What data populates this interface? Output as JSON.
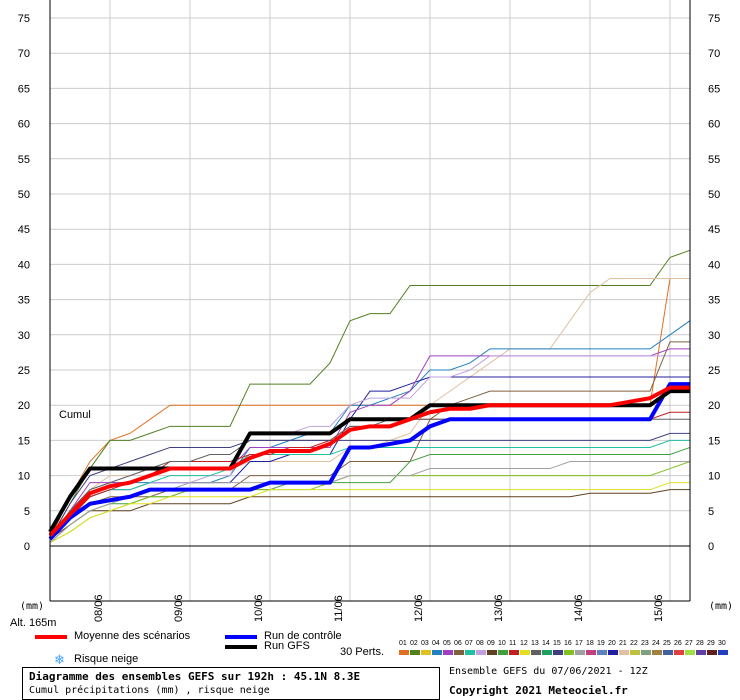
{
  "chart_data": {
    "type": "line",
    "y_ticks": [
      "75",
      "70",
      "65",
      "60",
      "55",
      "50",
      "45",
      "40",
      "35",
      "30",
      "25",
      "20",
      "15",
      "10",
      "5",
      "0"
    ],
    "ylim": [
      0,
      75
    ],
    "x_tick_labels": [
      "08/06",
      "09/06",
      "10/06",
      "11/06",
      "12/06",
      "13/06",
      "14/06",
      "15/06"
    ],
    "x_tick_hours": [
      18,
      42,
      66,
      90,
      114,
      138,
      162,
      186
    ],
    "xlim": [
      0,
      192
    ],
    "grid": true,
    "left_unit": "(mm)",
    "right_unit": "(mm)",
    "altitude": "Alt. 165m",
    "cumul_label": "Cumul",
    "legend": {
      "mean_label": "Moyenne des scénarios",
      "control_label": "Run de contrôle",
      "gfs_label": "Run GFS",
      "snow_label": "Risque neige",
      "perts_label": "30 Perts.",
      "snow_icon": "snowflake-icon"
    },
    "series": [
      {
        "name": "Moyenne des scénarios",
        "color": "#ff0000",
        "x": [
          0,
          6,
          12,
          18,
          24,
          30,
          36,
          42,
          48,
          54,
          60,
          66,
          72,
          78,
          84,
          90,
          96,
          102,
          108,
          114,
          120,
          126,
          132,
          138,
          144,
          150,
          156,
          162,
          168,
          174,
          180,
          186,
          192
        ],
        "values": [
          1.5,
          4.5,
          7.5,
          8.5,
          9,
          10,
          11,
          11,
          11,
          11,
          12.5,
          13.5,
          13.5,
          13.5,
          14.5,
          16.5,
          17,
          17,
          18,
          19,
          19.5,
          19.5,
          20,
          20,
          20,
          20,
          20,
          20,
          20,
          20.5,
          21,
          22.5,
          22.5
        ]
      },
      {
        "name": "Run de contrôle",
        "color": "#0000ff",
        "x": [
          0,
          6,
          12,
          18,
          24,
          30,
          36,
          42,
          48,
          54,
          60,
          66,
          72,
          78,
          84,
          90,
          96,
          102,
          108,
          114,
          120,
          126,
          132,
          138,
          144,
          150,
          156,
          162,
          168,
          174,
          180,
          186,
          192
        ],
        "values": [
          1,
          4,
          6,
          6.5,
          7,
          8,
          8,
          8,
          8,
          8,
          8,
          9,
          9,
          9,
          9,
          14,
          14,
          14.5,
          15,
          17,
          18,
          18,
          18,
          18,
          18,
          18,
          18,
          18,
          18,
          18,
          18,
          23,
          23
        ]
      },
      {
        "name": "Run GFS",
        "color": "#000000",
        "x": [
          0,
          6,
          12,
          18,
          24,
          30,
          36,
          42,
          48,
          54,
          60,
          66,
          72,
          78,
          84,
          90,
          96,
          102,
          108,
          114,
          120,
          126,
          132,
          138,
          144,
          150,
          156,
          162,
          168,
          174,
          180,
          186,
          192
        ],
        "values": [
          2,
          7,
          11,
          11,
          11,
          11,
          11,
          11,
          11,
          11,
          16,
          16,
          16,
          16,
          16,
          18,
          18,
          18,
          18,
          20,
          20,
          20,
          20,
          20,
          20,
          20,
          20,
          20,
          20,
          20,
          20,
          22,
          22
        ]
      }
    ],
    "perturbations": [
      {
        "color": "#e07020",
        "values": [
          1,
          7,
          12,
          15,
          16,
          18,
          20,
          20,
          20,
          20,
          20,
          20,
          20,
          20,
          20,
          20,
          20,
          20,
          20,
          20,
          20,
          20,
          20,
          20,
          20,
          20,
          20,
          20,
          20,
          20,
          20,
          38,
          38
        ]
      },
      {
        "color": "#508020",
        "values": [
          1,
          6,
          11,
          15,
          15,
          16,
          17,
          17,
          17,
          17,
          23,
          23,
          23,
          23,
          26,
          32,
          33,
          33,
          37,
          37,
          37,
          37,
          37,
          37,
          37,
          37,
          37,
          37,
          37,
          37,
          37,
          41,
          42
        ]
      },
      {
        "color": "#e0c0a0",
        "values": [
          1,
          5,
          8,
          10,
          10,
          11,
          11,
          11,
          11,
          11,
          12,
          12,
          12,
          12,
          12,
          14,
          14,
          15,
          16,
          20,
          22,
          24,
          26,
          28,
          28,
          28,
          32,
          36,
          38,
          38,
          38,
          38,
          38
        ]
      },
      {
        "color": "#2080c0",
        "values": [
          1,
          5,
          8,
          9,
          9,
          9,
          9,
          9,
          9,
          10,
          14,
          14,
          15,
          16,
          16,
          20,
          20,
          21,
          22,
          25,
          25,
          26,
          28,
          28,
          28,
          28,
          28,
          28,
          28,
          28,
          28,
          30,
          32
        ]
      },
      {
        "color": "#2020a0",
        "values": [
          1,
          4,
          7,
          8,
          8,
          9,
          9,
          9,
          9,
          9,
          12,
          12,
          13,
          13,
          13,
          18,
          22,
          22,
          23,
          24,
          24,
          24,
          24,
          24,
          24,
          24,
          24,
          24,
          24,
          24,
          24,
          24,
          24
        ]
      },
      {
        "color": "#a040c0",
        "values": [
          1,
          5,
          9,
          9,
          9,
          10,
          11,
          11,
          11,
          11,
          14,
          14,
          14,
          14,
          14,
          19,
          20,
          20,
          22,
          27,
          27,
          27,
          27,
          27,
          27,
          27,
          27,
          27,
          27,
          27,
          27,
          28,
          28
        ]
      },
      {
        "color": "#c0a0e0",
        "values": [
          1,
          4,
          7,
          8,
          8,
          9,
          9,
          9,
          10,
          10,
          16,
          16,
          16,
          17,
          17,
          20,
          21,
          21,
          21,
          24,
          24,
          25,
          27,
          27,
          27,
          27,
          27,
          27,
          27,
          27,
          27,
          27,
          27
        ]
      },
      {
        "color": "#806040",
        "values": [
          1,
          4,
          6,
          7,
          7,
          7,
          8,
          8,
          8,
          8,
          10,
          10,
          10,
          10,
          10,
          12,
          12,
          12,
          12,
          18,
          20,
          21,
          22,
          22,
          22,
          22,
          22,
          22,
          22,
          22,
          22,
          29,
          29
        ]
      },
      {
        "color": "#604020",
        "values": [
          1,
          3,
          5,
          5,
          5,
          6,
          6,
          6,
          6,
          6,
          7,
          7,
          7,
          7,
          7,
          7,
          7,
          7,
          7,
          7,
          7,
          7,
          7,
          7,
          7,
          7,
          7,
          7.5,
          7.5,
          7.5,
          7.5,
          8,
          8
        ]
      },
      {
        "color": "#40a040",
        "values": [
          0.5,
          3,
          5,
          6,
          6,
          7,
          7,
          8,
          8,
          8,
          8,
          8,
          9,
          9,
          9,
          9,
          9,
          9,
          12,
          13,
          13,
          13,
          13,
          13,
          13,
          13,
          13,
          13,
          13,
          13,
          13,
          13,
          14
        ]
      },
      {
        "color": "#80c020",
        "values": [
          0.5,
          2,
          4,
          5,
          6,
          7,
          7,
          8,
          8,
          8,
          8,
          8,
          8,
          8,
          9,
          10,
          10,
          10,
          10,
          10,
          10,
          10,
          10,
          10,
          10,
          10,
          10,
          10,
          10,
          10,
          10,
          11,
          12
        ]
      },
      {
        "color": "#e0e020",
        "values": [
          0.5,
          2,
          4,
          5,
          6,
          6,
          7,
          7,
          7,
          7,
          7,
          8,
          8,
          8,
          8,
          8,
          8,
          8,
          8,
          8,
          8,
          8,
          8,
          8,
          8,
          8,
          8,
          8,
          8,
          8,
          8,
          9,
          9
        ]
      },
      {
        "color": "#20c0a0",
        "values": [
          1,
          4,
          7,
          8,
          8,
          9,
          10,
          10,
          10,
          11,
          13,
          13,
          13,
          13,
          13,
          14,
          14,
          14,
          14,
          14,
          14,
          14,
          14,
          14,
          14,
          14,
          14,
          14,
          14,
          14,
          14,
          15,
          15
        ]
      },
      {
        "color": "#c02020",
        "values": [
          1,
          4,
          7,
          8,
          9,
          10,
          12,
          12,
          12,
          12,
          13,
          13,
          14,
          14,
          15,
          17,
          17,
          17,
          18,
          18,
          18,
          18,
          18,
          18,
          18,
          18,
          18,
          18,
          18,
          18,
          18,
          19,
          19
        ]
      },
      {
        "color": "#606060",
        "values": [
          1,
          5,
          8,
          9,
          10,
          11,
          12,
          12,
          13,
          13,
          15,
          15,
          15,
          15,
          15,
          17,
          17,
          18,
          18,
          18,
          18,
          18,
          18,
          18,
          18,
          18,
          18,
          18,
          18,
          18,
          18,
          18,
          18
        ]
      },
      {
        "color": "#404080",
        "values": [
          1,
          6,
          10,
          11,
          12,
          13,
          14,
          14,
          14,
          14,
          15,
          15,
          15,
          15,
          15,
          15,
          15,
          15,
          15,
          15,
          15,
          15,
          15,
          15,
          15,
          15,
          15,
          15,
          15,
          15,
          15,
          16,
          16
        ]
      },
      {
        "color": "#a0a0a0",
        "values": [
          0.5,
          3,
          5,
          6,
          7,
          8,
          8,
          9,
          9,
          9,
          9,
          9,
          9,
          9,
          9,
          10,
          10,
          10,
          10,
          11,
          11,
          11,
          11,
          11,
          11,
          11,
          12,
          12,
          12,
          12,
          12,
          12,
          12
        ]
      }
    ],
    "pert_legend": {
      "numbers": [
        "01",
        "02",
        "03",
        "04",
        "05",
        "06",
        "07",
        "08",
        "09",
        "10",
        "11",
        "12",
        "13",
        "14",
        "15",
        "16",
        "17",
        "18",
        "19",
        "20",
        "21",
        "22",
        "23",
        "24",
        "25",
        "26",
        "27",
        "28",
        "29",
        "30"
      ],
      "colors": [
        "#e07020",
        "#508020",
        "#e0c020",
        "#2080c0",
        "#a040c0",
        "#806040",
        "#20c0a0",
        "#c0a0e0",
        "#604020",
        "#40a040",
        "#c02020",
        "#e0e020",
        "#606060",
        "#20a060",
        "#404080",
        "#80c020",
        "#a0a0a0",
        "#c04080",
        "#6080c0",
        "#2020a0",
        "#e0c0a0",
        "#c0c040",
        "#80a080",
        "#a08040",
        "#4060a0",
        "#e04040",
        "#a0e040",
        "#6040a0",
        "#602020",
        "#2040c0"
      ]
    }
  },
  "footer": {
    "title": "Diagramme des ensembles GEFS sur 192h : 45.1N 8.3E",
    "subtitle": "Cumul précipitations (mm) , risque neige",
    "ensemble": "Ensemble GEFS du 07/06/2021 - 12Z",
    "copyright": "Copyright 2021 Meteociel.fr"
  }
}
